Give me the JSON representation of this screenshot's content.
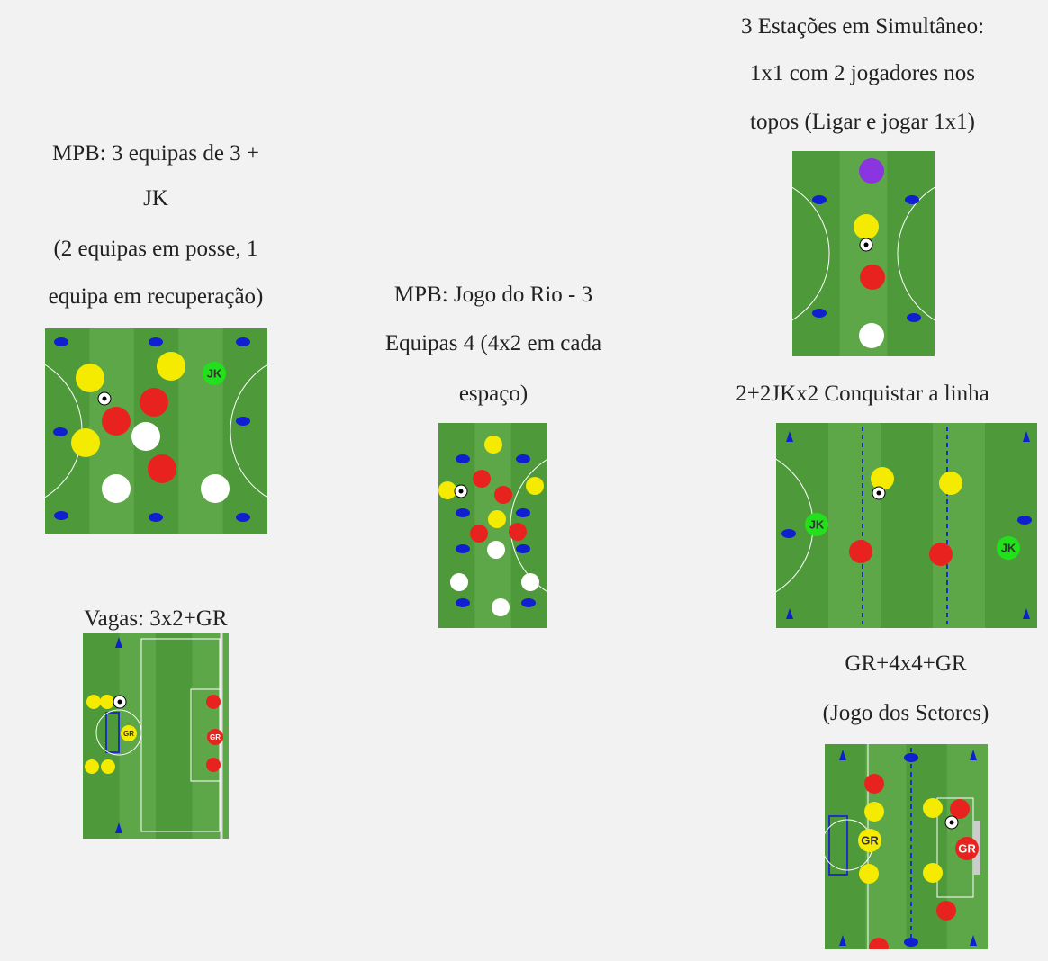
{
  "blocks": [
    {
      "caption": [
        "MPB: 3 equipas de 3 +",
        "JK",
        "(2 equipas em posse, 1",
        "equipa em recuperação)"
      ],
      "labels": [
        "JK"
      ]
    },
    {
      "caption": [
        "MPB: Jogo do Rio - 3",
        "Equipas 4 (4x2 em cada",
        "espaço)"
      ]
    },
    {
      "caption": [
        "3 Estações em Simultâneo:",
        "1x1 com 2 jogadores nos",
        "topos (Ligar e jogar 1x1)"
      ]
    },
    {
      "caption": [
        "2+2JKx2 Conquistar a linha"
      ],
      "labels": [
        "JK",
        "JK"
      ]
    },
    {
      "caption": [
        "Vagas: 3x2+GR"
      ],
      "labels": [
        "GR",
        "GR"
      ]
    },
    {
      "caption": [
        "GR+4x4+GR",
        "(Jogo dos Setores)"
      ],
      "labels": [
        "GR",
        "GR"
      ]
    }
  ]
}
